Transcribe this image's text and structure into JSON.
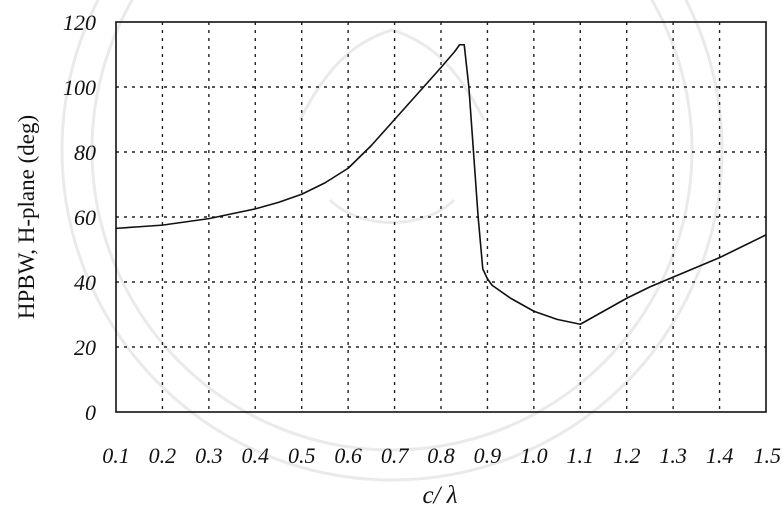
{
  "chart_data": {
    "type": "line",
    "title": "",
    "xlabel": "c/ λ",
    "ylabel": "HPBW, H-plane (deg)",
    "xlim": [
      0.1,
      1.5
    ],
    "ylim": [
      0,
      120
    ],
    "x_ticks": [
      "0.1",
      "0.2",
      "0.3",
      "0.4",
      "0.5",
      "0.6",
      "0.7",
      "0.8",
      "0.9",
      "1.0",
      "1.1",
      "1.2",
      "1.3",
      "1.4",
      "1.5"
    ],
    "y_ticks": [
      "0",
      "20",
      "40",
      "60",
      "80",
      "100",
      "120"
    ],
    "grid": true,
    "legend": "none",
    "series": [
      {
        "x": [
          0.1,
          0.15,
          0.2,
          0.25,
          0.3,
          0.35,
          0.4,
          0.45,
          0.5,
          0.55,
          0.6,
          0.65,
          0.7,
          0.75,
          0.8,
          0.83,
          0.84,
          0.85,
          0.86,
          0.87,
          0.88,
          0.89,
          0.9,
          0.91,
          0.95,
          1.0,
          1.05,
          1.1,
          1.15,
          1.2,
          1.25,
          1.3,
          1.35,
          1.4,
          1.45,
          1.5
        ],
        "y": [
          56.5,
          57,
          57.5,
          58.5,
          59.5,
          61,
          62.5,
          64.5,
          67,
          70.5,
          75,
          82,
          90,
          98,
          106,
          111,
          113,
          113,
          100,
          80,
          60,
          44,
          41,
          39,
          35,
          31,
          28.5,
          27,
          31,
          35,
          38.5,
          41.5,
          44.5,
          47.5,
          51,
          54.5
        ]
      }
    ]
  }
}
